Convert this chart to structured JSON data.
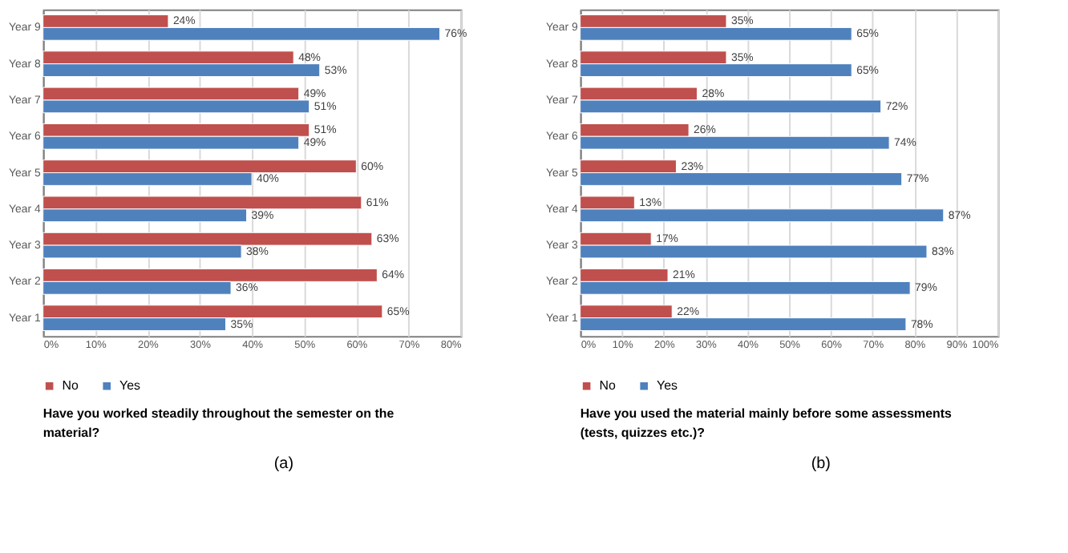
{
  "chart_data": [
    {
      "type": "bar",
      "orientation": "horizontal",
      "categories": [
        "Year 9",
        "Year 8",
        "Year 7",
        "Year 6",
        "Year 5",
        "Year 4",
        "Year 3",
        "Year 2",
        "Year 1"
      ],
      "series": [
        {
          "name": "No",
          "color": "#c0504d",
          "values": [
            24,
            48,
            49,
            51,
            60,
            61,
            63,
            64,
            65
          ],
          "value_labels": [
            "24%",
            "48%",
            "49%",
            "51%",
            "60%",
            "61%",
            "63%",
            "64%",
            "65%"
          ]
        },
        {
          "name": "Yes",
          "color": "#4f81bd",
          "values": [
            76,
            53,
            51,
            49,
            40,
            39,
            38,
            36,
            35
          ],
          "value_labels": [
            "76%",
            "53%",
            "51%",
            "49%",
            "40%",
            "39%",
            "38%",
            "36%",
            "35%"
          ]
        }
      ],
      "xlim": [
        0,
        80
      ],
      "xticks": [
        {
          "value": 0,
          "label": "0%"
        },
        {
          "value": 10,
          "label": "10%"
        },
        {
          "value": 20,
          "label": "20%"
        },
        {
          "value": 30,
          "label": "30%"
        },
        {
          "value": 40,
          "label": "40%"
        },
        {
          "value": 50,
          "label": "50%"
        },
        {
          "value": 60,
          "label": "60%"
        },
        {
          "value": 70,
          "label": "70%"
        },
        {
          "value": 80,
          "label": "80%"
        }
      ],
      "grid": "x",
      "legend": "bottom",
      "annotations": [
        "Have you worked steadily throughout the semester on the material?",
        "(a)"
      ]
    },
    {
      "type": "bar",
      "orientation": "horizontal",
      "categories": [
        "Year 9",
        "Year 8",
        "Year 7",
        "Year 6",
        "Year 5",
        "Year 4",
        "Year 3",
        "Year 2",
        "Year 1"
      ],
      "series": [
        {
          "name": "No",
          "color": "#c0504d",
          "values": [
            35,
            35,
            28,
            26,
            23,
            13,
            17,
            21,
            22
          ],
          "value_labels": [
            "35%",
            "35%",
            "28%",
            "26%",
            "23%",
            "13%",
            "17%",
            "21%",
            "22%"
          ]
        },
        {
          "name": "Yes",
          "color": "#4f81bd",
          "values": [
            65,
            65,
            72,
            74,
            77,
            87,
            83,
            79,
            78
          ],
          "value_labels": [
            "65%",
            "65%",
            "72%",
            "74%",
            "77%",
            "87%",
            "83%",
            "79%",
            "78%"
          ]
        }
      ],
      "xlim": [
        0,
        100
      ],
      "xticks": [
        {
          "value": 0,
          "label": "0%"
        },
        {
          "value": 10,
          "label": "10%"
        },
        {
          "value": 20,
          "label": "20%"
        },
        {
          "value": 30,
          "label": "30%"
        },
        {
          "value": 40,
          "label": "40%"
        },
        {
          "value": 50,
          "label": "50%"
        },
        {
          "value": 60,
          "label": "60%"
        },
        {
          "value": 70,
          "label": "70%"
        },
        {
          "value": 80,
          "label": "80%"
        },
        {
          "value": 90,
          "label": "90%"
        },
        {
          "value": 100,
          "label": "100%"
        }
      ],
      "grid": "x",
      "legend": "bottom",
      "annotations": [
        "Have you used the material mainly before some assessments (tests, quizzes etc.)?",
        "(b)"
      ]
    }
  ]
}
